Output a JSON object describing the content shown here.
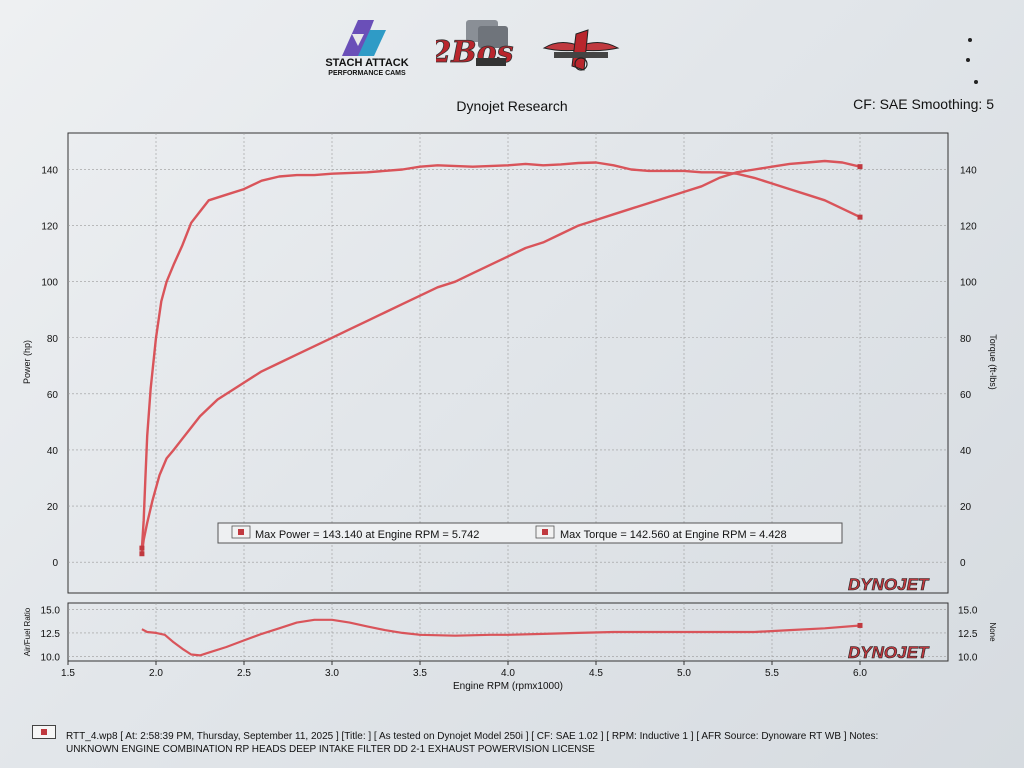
{
  "header": {
    "logos": [
      {
        "name": "stach-attack-logo",
        "line1": "STACH ATTACK",
        "line2": "PERFORMANCE CAMS"
      },
      {
        "name": "2bos-logo",
        "text": "2Bos"
      },
      {
        "name": "third-logo"
      }
    ],
    "title": "Dynojet Research",
    "cf_text": "CF: SAE Smoothing: 5"
  },
  "colors": {
    "curve": "#d9545a",
    "grid": "#9a9a9a",
    "axis": "#333333",
    "paper": "#e6e9ec",
    "dynojet_red": "#c0393f"
  },
  "chart_data": [
    {
      "type": "line",
      "name": "main-dyno-chart",
      "xlabel": "",
      "ylabel_left": "Power (hp)",
      "ylabel_right": "Torque (ft-lbs)",
      "xlim": [
        1.5,
        6.5
      ],
      "ylim": [
        -11,
        153
      ],
      "y_ticks": [
        0,
        20,
        40,
        60,
        80,
        100,
        120,
        140
      ],
      "grid": true,
      "legend": {
        "placement": "bottom-center",
        "entries": [
          "Max Power = 143.140 at Engine RPM = 5.742",
          "Max Torque = 142.560 at Engine RPM = 4.428"
        ]
      },
      "series": [
        {
          "key": "power",
          "x": [
            1.92,
            1.93,
            1.95,
            1.98,
            2.02,
            2.06,
            2.1,
            2.15,
            2.2,
            2.25,
            2.3,
            2.35,
            2.4,
            2.5,
            2.6,
            2.7,
            2.8,
            2.9,
            3.0,
            3.1,
            3.2,
            3.3,
            3.4,
            3.5,
            3.6,
            3.7,
            3.8,
            3.9,
            4.0,
            4.1,
            4.2,
            4.3,
            4.4,
            4.5,
            4.6,
            4.7,
            4.8,
            4.9,
            5.0,
            5.1,
            5.2,
            5.3,
            5.4,
            5.5,
            5.6,
            5.7,
            5.8,
            5.9,
            6.0
          ],
          "y": [
            3,
            8,
            14,
            22,
            31,
            37,
            40,
            44,
            48,
            52,
            55,
            58,
            60,
            64,
            68,
            71,
            74,
            77,
            80,
            83,
            86,
            89,
            92,
            95,
            98,
            100,
            103,
            106,
            109,
            112,
            114,
            117,
            120,
            122,
            124,
            126,
            128,
            130,
            132,
            134,
            137,
            139,
            140,
            141,
            142,
            142.5,
            143,
            142.5,
            141
          ]
        },
        {
          "key": "torque",
          "x": [
            1.92,
            1.93,
            1.94,
            1.95,
            1.97,
            2.0,
            2.03,
            2.06,
            2.1,
            2.15,
            2.2,
            2.25,
            2.3,
            2.4,
            2.5,
            2.6,
            2.7,
            2.8,
            2.9,
            3.0,
            3.2,
            3.4,
            3.5,
            3.6,
            3.8,
            4.0,
            4.1,
            4.2,
            4.3,
            4.4,
            4.5,
            4.6,
            4.7,
            4.8,
            4.9,
            5.0,
            5.1,
            5.2,
            5.3,
            5.4,
            5.5,
            5.6,
            5.7,
            5.8,
            5.9,
            6.0
          ],
          "y": [
            5,
            15,
            30,
            45,
            62,
            80,
            93,
            100,
            106,
            113,
            121,
            125,
            129,
            131,
            133,
            136,
            137.5,
            138,
            138,
            138.5,
            139,
            140,
            141,
            141.5,
            141,
            141.5,
            142,
            141.5,
            141.8,
            142.3,
            142.5,
            141.5,
            140,
            139.5,
            139.5,
            139.5,
            139,
            139,
            138.5,
            137,
            135,
            133,
            131,
            129,
            126,
            123
          ]
        }
      ]
    },
    {
      "type": "line",
      "name": "afr-chart",
      "xlabel": "Engine RPM (rpmx1000)",
      "ylabel_left": "Air/Fuel Ratio",
      "ylabel_right": "None",
      "xlim": [
        1.5,
        6.5
      ],
      "ylim": [
        9.5,
        15.7
      ],
      "y_ticks": [
        10.0,
        12.5,
        15.0
      ],
      "y_tick_labels": [
        "10.0",
        "12.5",
        "15.0"
      ],
      "x_ticks": [
        1.5,
        2.0,
        2.5,
        3.0,
        3.5,
        4.0,
        4.5,
        5.0,
        5.5,
        6.0
      ],
      "x_tick_labels": [
        "1.5",
        "2.0",
        "2.5",
        "3.0",
        "3.5",
        "4.0",
        "4.5",
        "5.0",
        "5.5",
        "6.0"
      ],
      "grid": true,
      "series": [
        {
          "key": "afr",
          "x": [
            1.92,
            1.95,
            2.0,
            2.05,
            2.1,
            2.15,
            2.2,
            2.25,
            2.3,
            2.4,
            2.5,
            2.6,
            2.7,
            2.8,
            2.9,
            3.0,
            3.1,
            3.2,
            3.3,
            3.4,
            3.5,
            3.7,
            3.9,
            4.0,
            4.2,
            4.4,
            4.6,
            4.8,
            5.0,
            5.2,
            5.4,
            5.6,
            5.8,
            6.0
          ],
          "y": [
            12.9,
            12.6,
            12.5,
            12.3,
            11.5,
            10.8,
            10.2,
            10.1,
            10.4,
            11.0,
            11.7,
            12.4,
            13.0,
            13.6,
            13.9,
            13.9,
            13.6,
            13.2,
            12.8,
            12.5,
            12.3,
            12.2,
            12.3,
            12.3,
            12.4,
            12.5,
            12.6,
            12.6,
            12.6,
            12.6,
            12.6,
            12.8,
            13.0,
            13.3
          ]
        }
      ]
    }
  ],
  "watermark": "DYNOJET",
  "footer": {
    "line1": "RTT_4.wp8 [ At: 2:58:39 PM, Thursday, September 11, 2025 ] [Title: ]  [ As tested on Dynojet Model 250i ] [ CF: SAE 1.02 ] [ RPM: Inductive 1 ] [ AFR Source: Dynoware RT WB ] Notes:",
    "line2": "UNKNOWN ENGINE COMBINATION RP HEADS DEEP INTAKE FILTER DD 2-1 EXHAUST POWERVISION LICENSE"
  }
}
